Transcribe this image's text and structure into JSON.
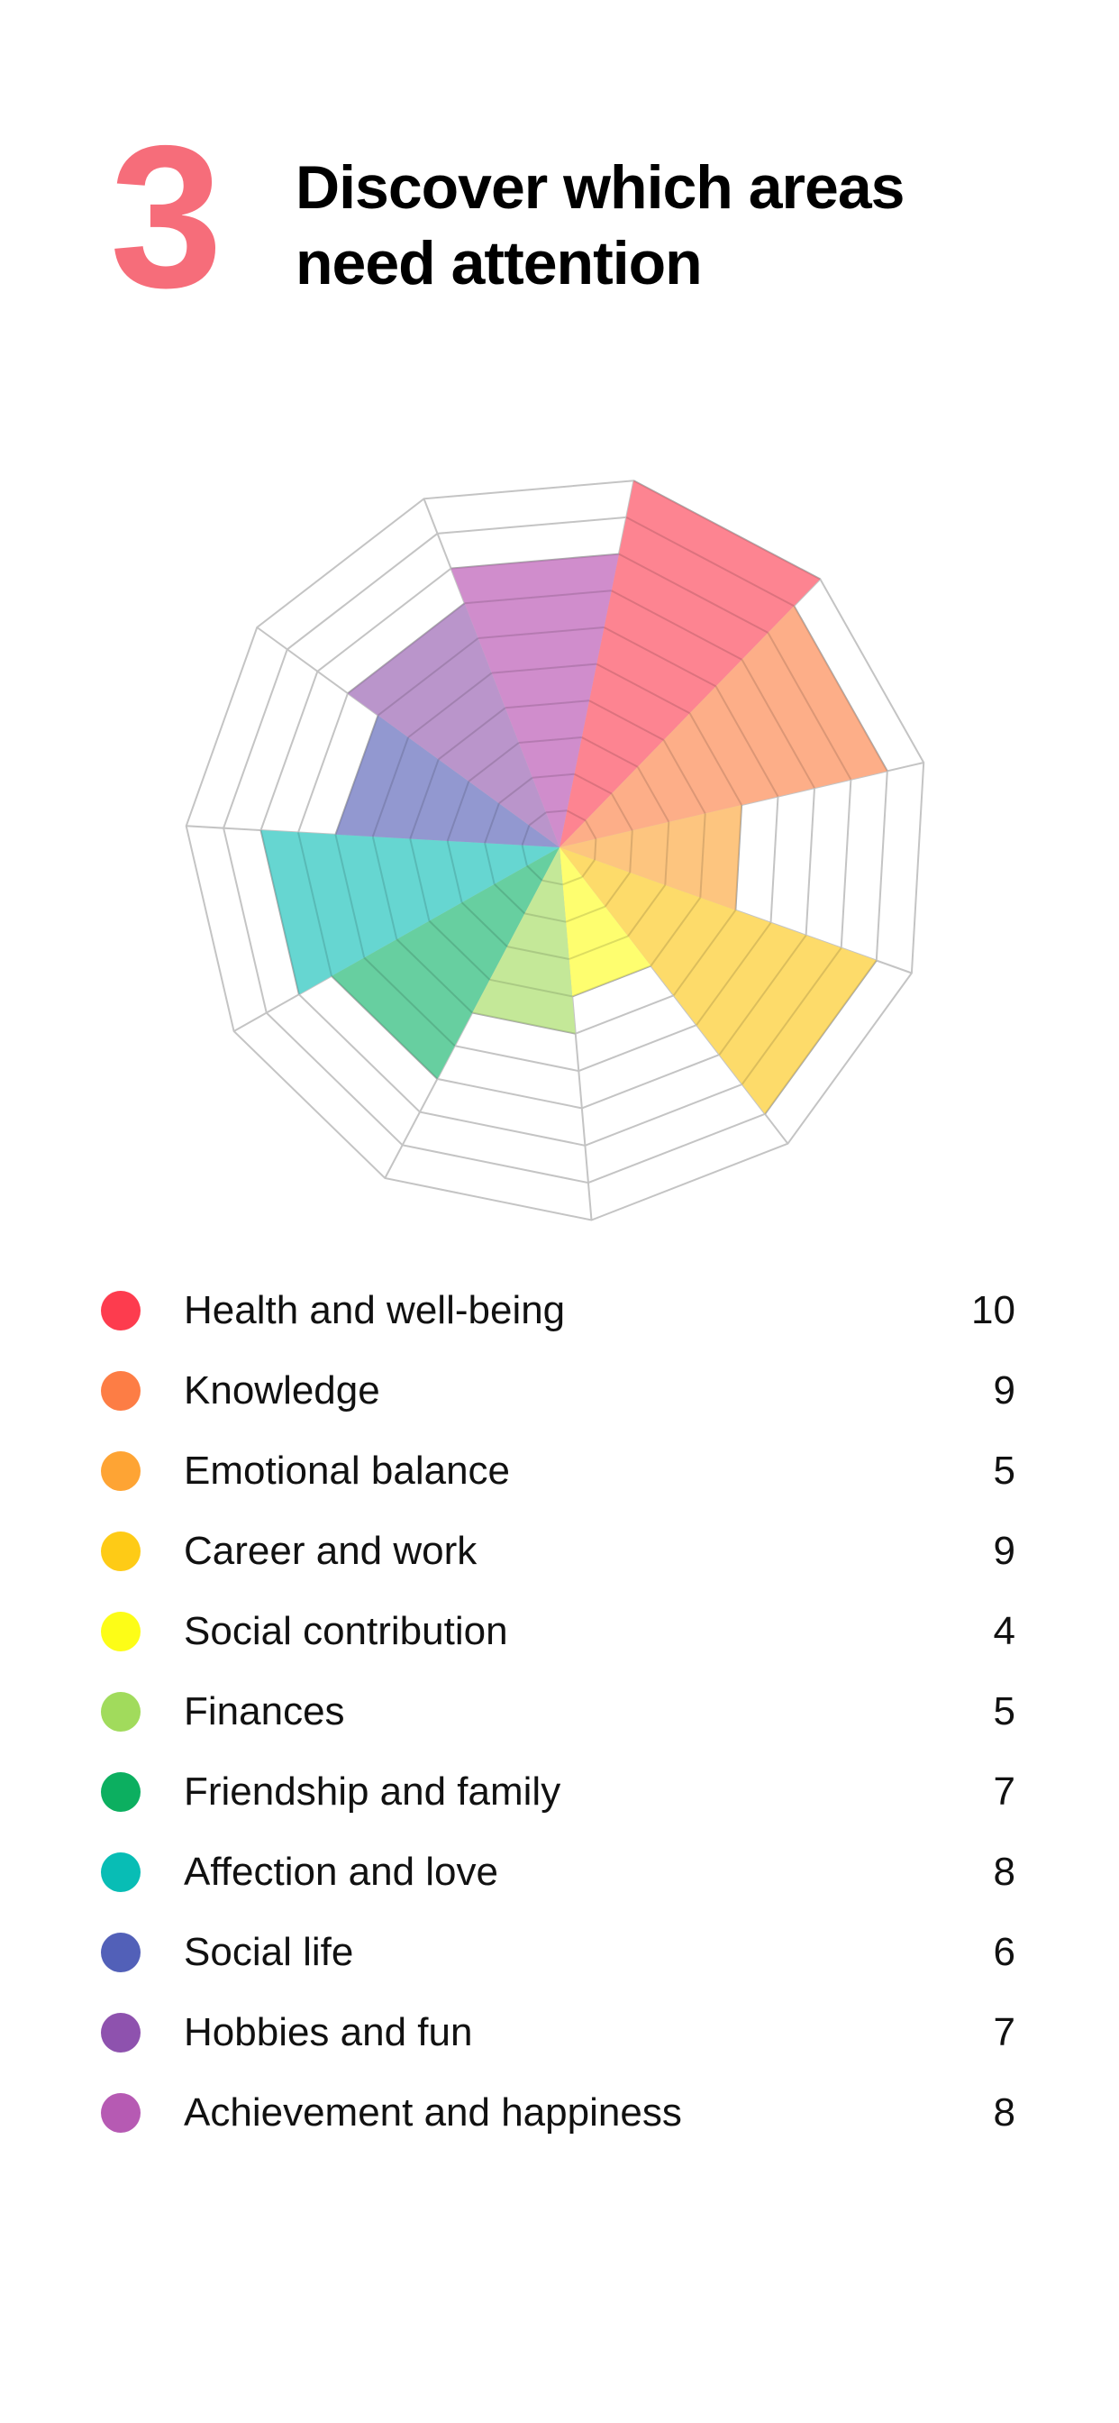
{
  "header": {
    "step_number": "3",
    "title": "Discover which areas need attention"
  },
  "chart_data": {
    "type": "polar-area",
    "max_value": 10,
    "rings": 10,
    "grid": true,
    "categories": [
      "Health and well-being",
      "Knowledge",
      "Emotional balance",
      "Career and work",
      "Social contribution",
      "Finances",
      "Friendship and family",
      "Affection and love",
      "Social life",
      "Hobbies and fun",
      "Achievement and happiness"
    ],
    "values": [
      10,
      9,
      5,
      9,
      4,
      5,
      7,
      8,
      6,
      7,
      8
    ],
    "wedge_colors": [
      "#fd8491",
      "#fdae88",
      "#fdc57f",
      "#fddb6a",
      "#fefe6f",
      "#c4e898",
      "#67cfa0",
      "#66d6d1",
      "#9298d0",
      "#ba95cb",
      "#d08dcc"
    ]
  },
  "legend": {
    "items": [
      {
        "label": "Health and well-being",
        "value": "10",
        "color": "#fd3c4e"
      },
      {
        "label": "Knowledge",
        "value": "9",
        "color": "#fd7d45"
      },
      {
        "label": "Emotional balance",
        "value": "5",
        "color": "#fea434"
      },
      {
        "label": "Career and work",
        "value": "9",
        "color": "#fecb16"
      },
      {
        "label": "Social contribution",
        "value": "4",
        "color": "#fdfd17"
      },
      {
        "label": "Finances",
        "value": "5",
        "color": "#a1db5c"
      },
      {
        "label": "Friendship and family",
        "value": "7",
        "color": "#0caf60"
      },
      {
        "label": "Affection and love",
        "value": "8",
        "color": "#08bdb5"
      },
      {
        "label": "Social life",
        "value": "6",
        "color": "#5260b8"
      },
      {
        "label": "Hobbies and fun",
        "value": "7",
        "color": "#8e52ae"
      },
      {
        "label": "Achievement and happiness",
        "value": "8",
        "color": "#b65ab3"
      }
    ]
  }
}
